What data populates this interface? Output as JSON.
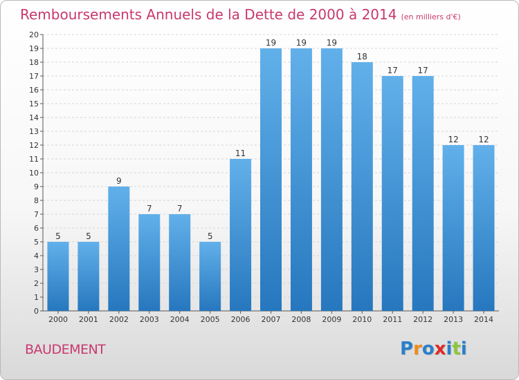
{
  "header": {
    "title": "Remboursements Annuels de la Dette de 2000 à 2014",
    "unit_note": "(en milliers d'€)"
  },
  "footer": {
    "commune": "BAUDEMENT",
    "brand": "Proxiti",
    "brand_colors": [
      "#2a7fc8",
      "#f08a1c",
      "#2a7fc8",
      "#e02828",
      "#2a7fc8",
      "#8cc63f",
      "#2a7fc8"
    ]
  },
  "colors": {
    "bar_light": "#62b0ea",
    "bar_dark": "#2677be",
    "title": "#c8386e"
  },
  "chart_data": {
    "type": "bar",
    "title": "Remboursements Annuels de la Dette de 2000 à 2014",
    "subtitle": "(en milliers d'€)",
    "xlabel": "",
    "ylabel": "",
    "categories": [
      "2000",
      "2001",
      "2002",
      "2003",
      "2004",
      "2005",
      "2006",
      "2007",
      "2008",
      "2009",
      "2010",
      "2011",
      "2012",
      "2013",
      "2014"
    ],
    "values": [
      5,
      5,
      9,
      7,
      7,
      5,
      11,
      19,
      19,
      19,
      18,
      17,
      17,
      12,
      12
    ],
    "ylim": [
      0,
      20
    ],
    "yticks": [
      0,
      1,
      2,
      3,
      4,
      5,
      6,
      7,
      8,
      9,
      10,
      11,
      12,
      13,
      14,
      15,
      16,
      17,
      18,
      19,
      20
    ],
    "grid": true,
    "legend": "none"
  }
}
